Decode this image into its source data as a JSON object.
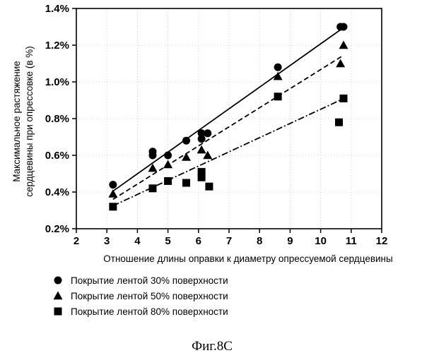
{
  "chart_data": {
    "type": "scatter",
    "title": "",
    "xlabel": "Отношение длины оправки к диаметру опрессуемой сердцевины",
    "ylabel": "Максимальное растяжение сердцевины при опрессовке (в %)",
    "ylabel_lines": [
      "Максимальное растяжение",
      "сердцевины при опрессовке (в %)"
    ],
    "xlim": [
      2,
      12
    ],
    "ylim": [
      0.2,
      1.4
    ],
    "x_ticks": [
      2,
      3,
      4,
      5,
      6,
      7,
      8,
      9,
      10,
      11,
      12
    ],
    "x_tick_labels": [
      "2",
      "3",
      "4",
      "5",
      "6",
      "7",
      "8",
      "9",
      "10",
      "11",
      "12"
    ],
    "y_ticks": [
      0.2,
      0.4,
      0.6,
      0.8,
      1.0,
      1.2,
      1.4
    ],
    "y_tick_labels": [
      "0.2%",
      "0.4%",
      "0.6%",
      "0.8%",
      "1.0%",
      "1.2%",
      "1.4%"
    ],
    "grid": true,
    "legend_position": "bottom",
    "caption": "Фиг.8С",
    "series": [
      {
        "name": "Покрытие лентой 30% поверхности",
        "marker": "circle",
        "line_style": "solid",
        "x": [
          3.2,
          4.5,
          4.5,
          5.0,
          5.6,
          6.1,
          6.1,
          6.3,
          8.6,
          10.65,
          10.75
        ],
        "y": [
          0.44,
          0.62,
          0.6,
          0.6,
          0.68,
          0.72,
          0.69,
          0.72,
          1.08,
          1.3,
          1.3
        ],
        "trend": {
          "x": [
            3.2,
            10.7
          ],
          "y": [
            0.405,
            1.29
          ]
        }
      },
      {
        "name": "Покрытие лентой 50% поверхности",
        "marker": "triangle",
        "line_style": "dashed",
        "x": [
          3.2,
          4.5,
          5.0,
          5.6,
          6.1,
          6.3,
          8.6,
          10.65,
          10.75
        ],
        "y": [
          0.39,
          0.53,
          0.55,
          0.59,
          0.63,
          0.6,
          1.03,
          1.1,
          1.2
        ],
        "trend": {
          "x": [
            3.2,
            10.7
          ],
          "y": [
            0.36,
            1.14
          ]
        }
      },
      {
        "name": "Покрытие лентой 80% поверхности",
        "marker": "square",
        "line_style": "dashdot",
        "x": [
          3.2,
          4.5,
          5.0,
          5.6,
          6.1,
          6.1,
          6.35,
          8.6,
          10.6,
          10.75
        ],
        "y": [
          0.32,
          0.42,
          0.46,
          0.45,
          0.51,
          0.48,
          0.43,
          0.92,
          0.78,
          0.91
        ],
        "trend": {
          "x": [
            3.2,
            10.7
          ],
          "y": [
            0.325,
            0.905
          ]
        }
      }
    ]
  }
}
